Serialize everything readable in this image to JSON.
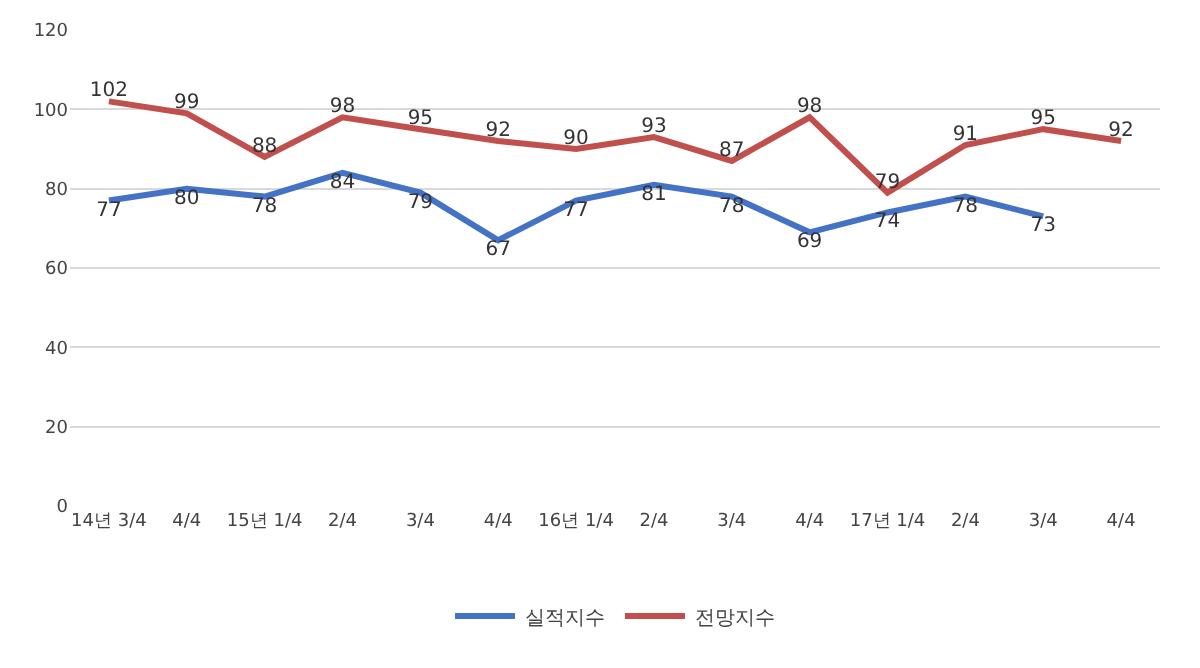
{
  "chart_data": {
    "type": "line",
    "categories": [
      "14년 3/4",
      "4/4",
      "15년 1/4",
      "2/4",
      "3/4",
      "4/4",
      "16년 1/4",
      "2/4",
      "3/4",
      "4/4",
      "17년 1/4",
      "2/4",
      "3/4",
      "4/4"
    ],
    "series": [
      {
        "name": "실적지수",
        "color": "#4472c4",
        "values": [
          77,
          80,
          78,
          84,
          79,
          67,
          77,
          81,
          78,
          69,
          74,
          78,
          73,
          null
        ]
      },
      {
        "name": "전망지수",
        "color": "#c0504d",
        "values": [
          102,
          99,
          88,
          98,
          95,
          92,
          90,
          93,
          87,
          98,
          79,
          91,
          95,
          92
        ]
      }
    ],
    "ylim": [
      0,
      120
    ],
    "yticks": [
      0,
      20,
      40,
      60,
      80,
      100,
      120
    ],
    "grid": "y",
    "legend": "bottom",
    "data_labels": true,
    "marker": "none",
    "line_style": "solid"
  }
}
